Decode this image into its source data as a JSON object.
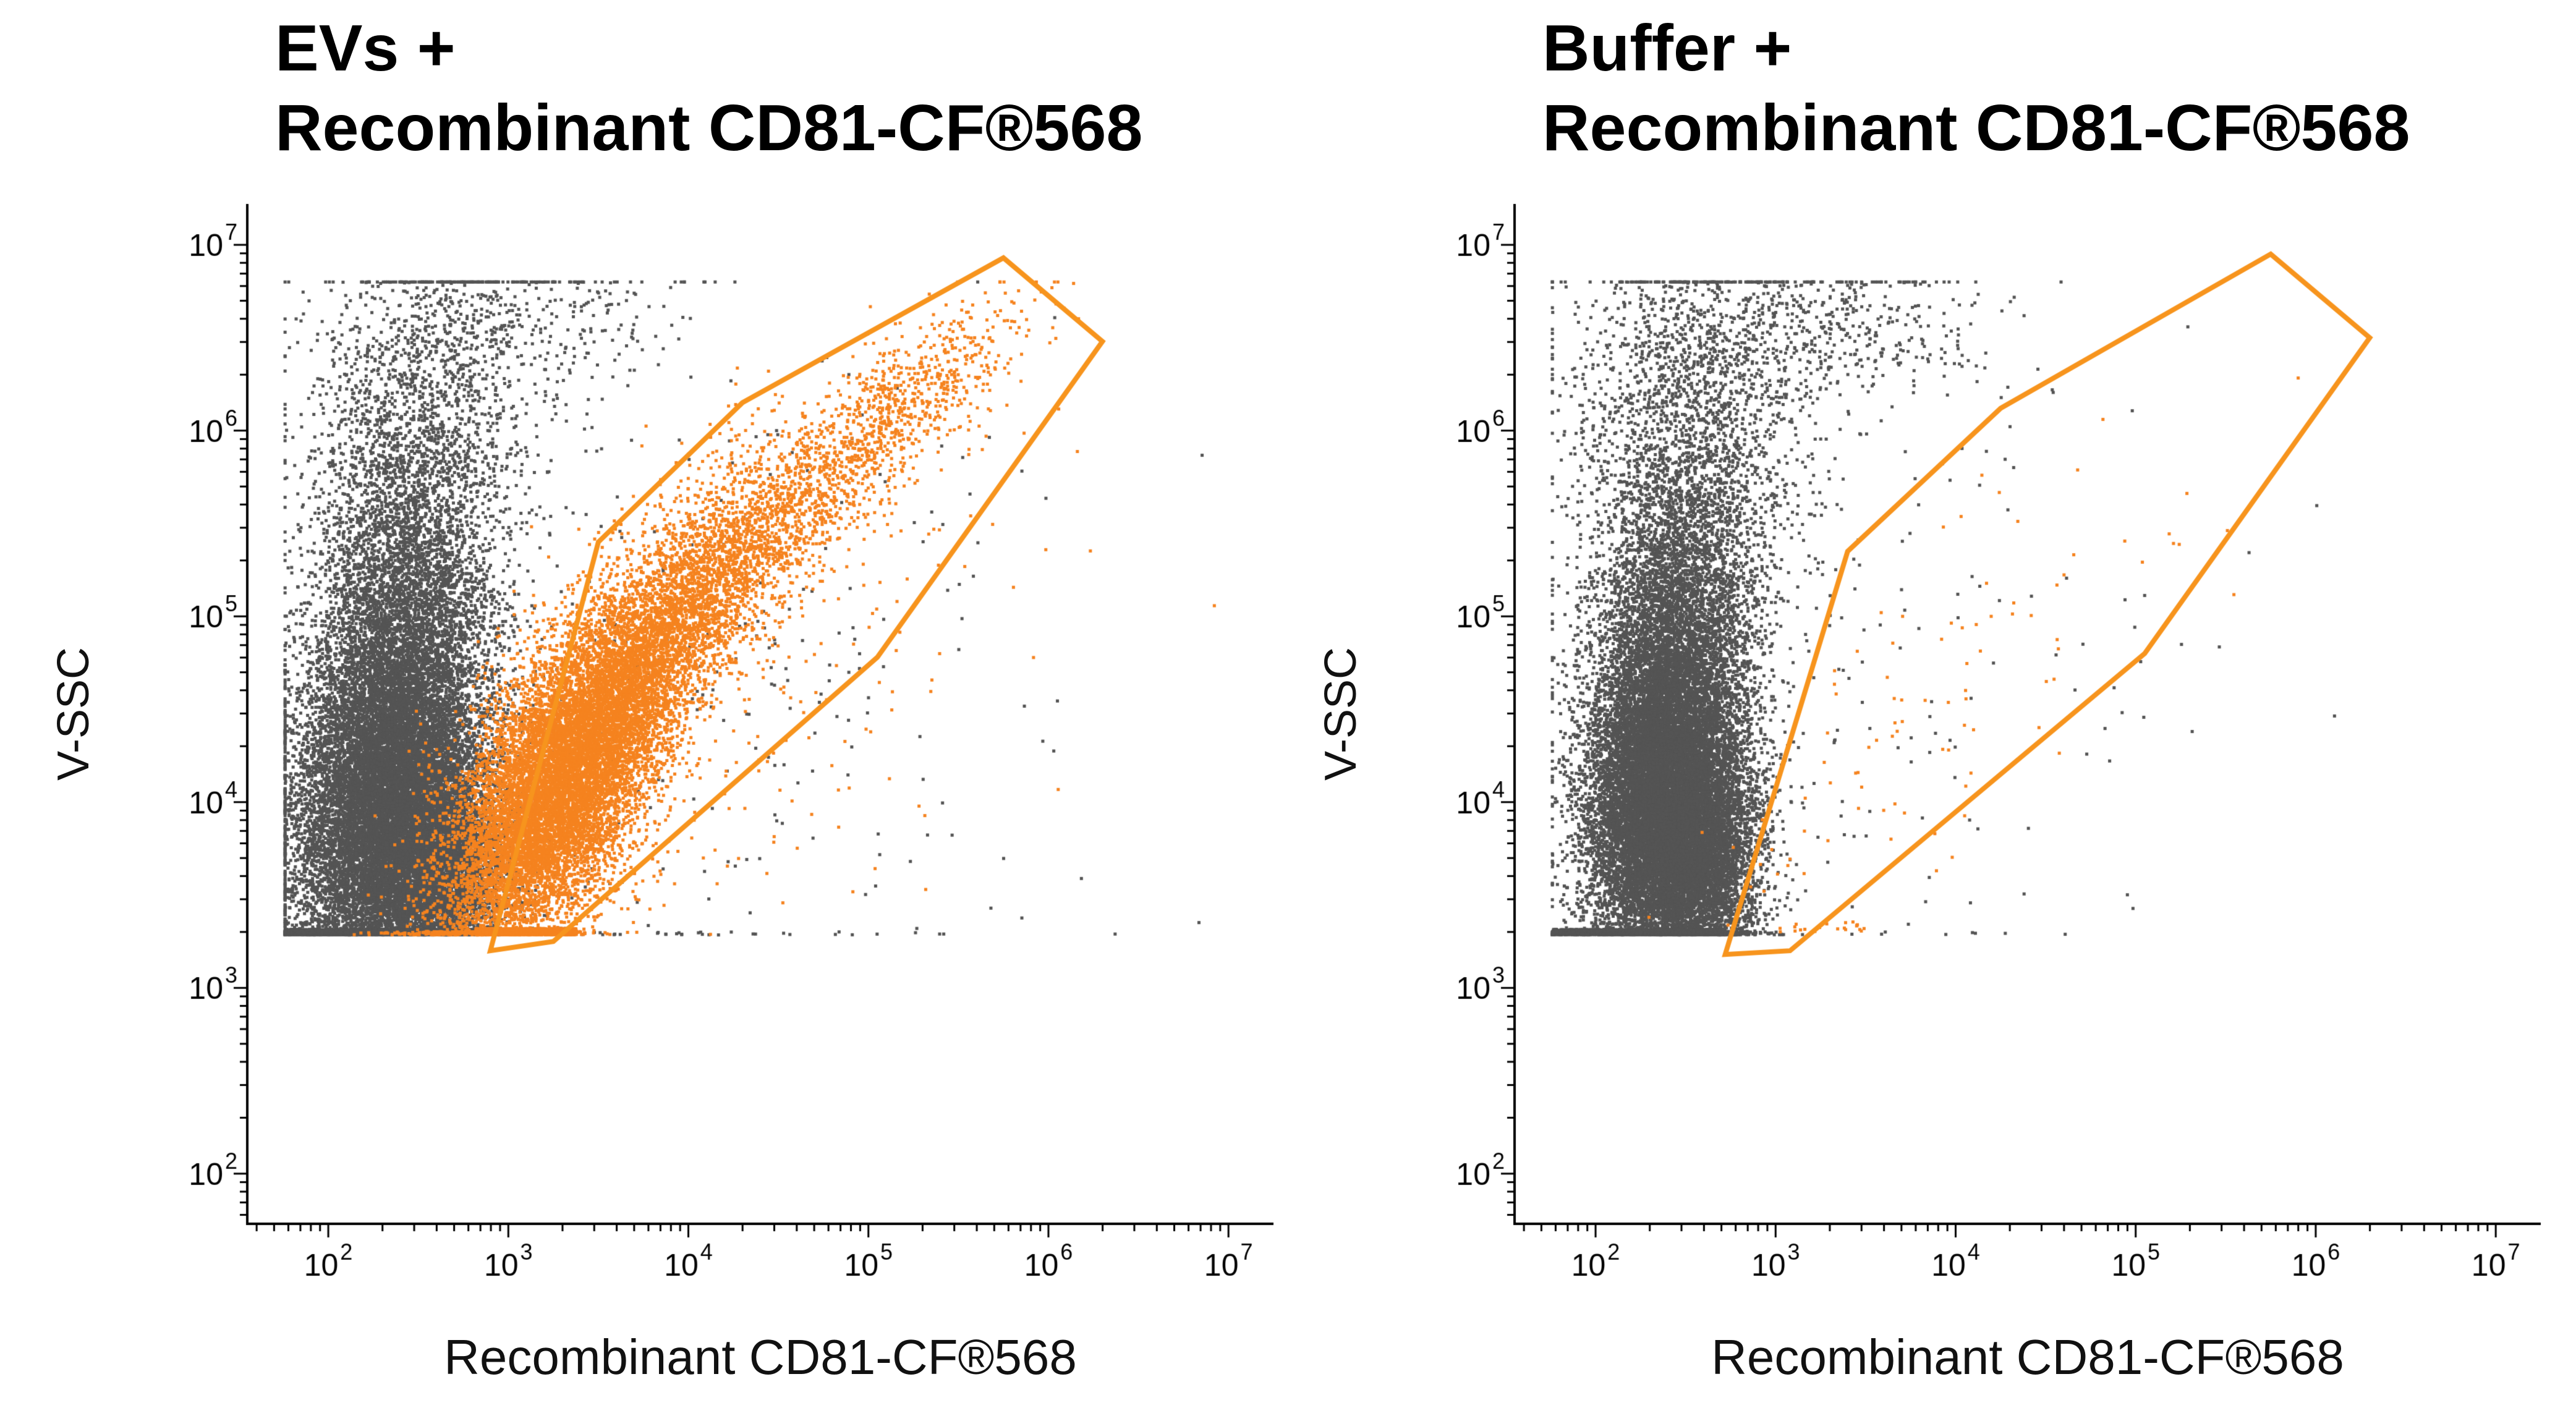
{
  "page": {
    "background": "#ffffff",
    "text_color": "#000000"
  },
  "chart_data": [
    {
      "type": "scatter",
      "title_line1": "EVs +",
      "title_line2": "Recombinant CD81-CF®568",
      "xlabel": "Recombinant CD81-CF®568",
      "ylabel": "V-SSC",
      "x_scale": "log10",
      "y_scale": "log10",
      "grid": false,
      "legend": "none",
      "x_range_log10": [
        1.55,
        7.25
      ],
      "y_range_log10": [
        1.73,
        7.22
      ],
      "x_major_ticks_exponents": [
        2,
        3,
        4,
        5,
        6,
        7
      ],
      "y_major_ticks_exponents": [
        2,
        3,
        4,
        5,
        6,
        7
      ],
      "clip": {
        "x_min": 1.76,
        "x_max": 7.2,
        "y_floor": 3.285,
        "y_ceil": 6.8
      },
      "colors": {
        "negative": "#545454",
        "positive": "#f5831f",
        "gate": "#f7941d",
        "axis": "#000000"
      },
      "seed": 1234,
      "gate": {
        "name": "CD81-positive-gate",
        "color_key": "gate",
        "vertices_log10": [
          [
            2.9,
            3.2
          ],
          [
            3.5,
            5.4
          ],
          [
            4.3,
            6.15
          ],
          [
            5.75,
            6.93
          ],
          [
            6.3,
            6.48
          ],
          [
            5.05,
            4.78
          ],
          [
            3.25,
            3.25
          ]
        ]
      },
      "populations": [
        {
          "name": "gray-main-cloud",
          "color": "negative",
          "kind": "gauss",
          "n": 15000,
          "cx": 2.33,
          "cy": 3.95,
          "sx": 0.26,
          "sy": 0.5,
          "rho": 0.1
        },
        {
          "name": "gray-mid-column",
          "color": "negative",
          "kind": "gauss",
          "n": 4500,
          "cx": 2.42,
          "cy": 4.95,
          "sx": 0.24,
          "sy": 0.5,
          "rho": 0.0
        },
        {
          "name": "gray-upper-column",
          "color": "negative",
          "kind": "gauss",
          "n": 1400,
          "cx": 2.52,
          "cy": 6.0,
          "sx": 0.3,
          "sy": 0.45,
          "rho": 0.0
        },
        {
          "name": "gray-top-band",
          "color": "negative",
          "kind": "gauss",
          "n": 450,
          "cx": 2.9,
          "cy": 6.6,
          "sx": 0.45,
          "sy": 0.22,
          "rho": 0.0
        },
        {
          "name": "gray-bottom-shoulder",
          "color": "negative",
          "kind": "gauss",
          "n": 4000,
          "cx": 2.62,
          "cy": 3.62,
          "sx": 0.18,
          "sy": 0.28,
          "rho": 0.0
        },
        {
          "name": "gray-baseline-strip",
          "color": "negative",
          "kind": "strip",
          "n": 2600,
          "x0": 1.76,
          "x1": 2.82,
          "y": 3.285,
          "jit": 0.03
        },
        {
          "name": "gray-sparse-noise",
          "color": "negative",
          "kind": "gauss",
          "n": 350,
          "cx": 3.9,
          "cy": 4.6,
          "sx": 1.1,
          "sy": 1.1,
          "rho": 0.2
        },
        {
          "name": "orange-core",
          "color": "positive",
          "kind": "gauss",
          "n": 8000,
          "cx": 3.25,
          "cy": 4.05,
          "sx": 0.3,
          "sy": 0.45,
          "rho": 0.55
        },
        {
          "name": "orange-core-upper",
          "color": "positive",
          "kind": "gauss",
          "n": 5000,
          "cx": 3.6,
          "cy": 4.55,
          "sx": 0.38,
          "sy": 0.55,
          "rho": 0.8
        },
        {
          "name": "orange-diagonal-band",
          "color": "positive",
          "kind": "gauss",
          "n": 2200,
          "cx": 4.35,
          "cy": 5.35,
          "sx": 0.5,
          "sy": 0.5,
          "rho": 0.9
        },
        {
          "name": "orange-upper-tip",
          "color": "positive",
          "kind": "gauss",
          "n": 450,
          "cx": 5.25,
          "cy": 6.15,
          "sx": 0.33,
          "sy": 0.28,
          "rho": 0.8
        },
        {
          "name": "orange-baseline-strip",
          "color": "positive",
          "kind": "strip",
          "n": 1400,
          "x0": 2.82,
          "x1": 3.38,
          "y": 3.285,
          "jit": 0.035
        },
        {
          "name": "orange-sparse-noise",
          "color": "positive",
          "kind": "gauss",
          "n": 160,
          "cx": 4.5,
          "cy": 4.7,
          "sx": 0.75,
          "sy": 0.75,
          "rho": 0.35
        }
      ]
    },
    {
      "type": "scatter",
      "title_line1": "Buffer +",
      "title_line2": "Recombinant CD81-CF®568",
      "xlabel": "Recombinant CD81-CF®568",
      "ylabel": "V-SSC",
      "x_scale": "log10",
      "y_scale": "log10",
      "grid": false,
      "legend": "none",
      "x_range_log10": [
        1.55,
        7.25
      ],
      "y_range_log10": [
        1.73,
        7.22
      ],
      "x_major_ticks_exponents": [
        2,
        3,
        4,
        5,
        6,
        7
      ],
      "y_major_ticks_exponents": [
        2,
        3,
        4,
        5,
        6,
        7
      ],
      "clip": {
        "x_min": 1.76,
        "x_max": 7.2,
        "y_floor": 3.285,
        "y_ceil": 6.8
      },
      "colors": {
        "negative": "#545454",
        "positive": "#f5831f",
        "gate": "#f7941d",
        "axis": "#000000"
      },
      "seed": 5678,
      "gate": {
        "name": "CD81-positive-gate",
        "color_key": "gate",
        "vertices_log10": [
          [
            2.72,
            3.18
          ],
          [
            3.4,
            5.35
          ],
          [
            4.25,
            6.12
          ],
          [
            5.75,
            6.95
          ],
          [
            6.3,
            6.5
          ],
          [
            5.05,
            4.8
          ],
          [
            3.08,
            3.2
          ]
        ]
      },
      "populations": [
        {
          "name": "gray-main-cloud",
          "color": "negative",
          "kind": "gauss",
          "n": 15000,
          "cx": 2.38,
          "cy": 4.0,
          "sx": 0.21,
          "sy": 0.45,
          "rho": 0.05
        },
        {
          "name": "gray-mid-column",
          "color": "negative",
          "kind": "gauss",
          "n": 4500,
          "cx": 2.45,
          "cy": 4.9,
          "sx": 0.22,
          "sy": 0.5,
          "rho": 0.0
        },
        {
          "name": "gray-upper-column",
          "color": "negative",
          "kind": "gauss",
          "n": 1800,
          "cx": 2.55,
          "cy": 5.9,
          "sx": 0.32,
          "sy": 0.5,
          "rho": 0.0
        },
        {
          "name": "gray-top-band",
          "color": "negative",
          "kind": "gauss",
          "n": 700,
          "cx": 3.0,
          "cy": 6.55,
          "sx": 0.6,
          "sy": 0.22,
          "rho": 0.0
        },
        {
          "name": "gray-bottom-shoulder",
          "color": "negative",
          "kind": "gauss",
          "n": 3000,
          "cx": 2.6,
          "cy": 3.7,
          "sx": 0.16,
          "sy": 0.3,
          "rho": 0.0
        },
        {
          "name": "gray-baseline-strip",
          "color": "negative",
          "kind": "strip",
          "n": 1800,
          "x0": 1.76,
          "x1": 2.72,
          "y": 3.285,
          "jit": 0.03
        },
        {
          "name": "gray-sparse-noise",
          "color": "negative",
          "kind": "gauss",
          "n": 220,
          "cx": 3.4,
          "cy": 4.5,
          "sx": 1.0,
          "sy": 1.1,
          "rho": 0.1
        },
        {
          "name": "orange-sparse-positives",
          "color": "positive",
          "kind": "gauss",
          "n": 70,
          "cx": 3.7,
          "cy": 4.4,
          "sx": 0.55,
          "sy": 0.6,
          "rho": 0.55
        },
        {
          "name": "orange-sparse-upper",
          "color": "positive",
          "kind": "gauss",
          "n": 14,
          "cx": 4.9,
          "cy": 5.4,
          "sx": 0.45,
          "sy": 0.4,
          "rho": 0.5
        },
        {
          "name": "orange-baseline-strip",
          "color": "positive",
          "kind": "strip",
          "n": 20,
          "x0": 2.85,
          "x1": 3.5,
          "y": 3.3,
          "jit": 0.06
        },
        {
          "name": "orange-low-cluster",
          "color": "positive",
          "kind": "gauss",
          "n": 10,
          "cx": 3.2,
          "cy": 3.6,
          "sx": 0.3,
          "sy": 0.2,
          "rho": 0.0
        }
      ]
    }
  ]
}
